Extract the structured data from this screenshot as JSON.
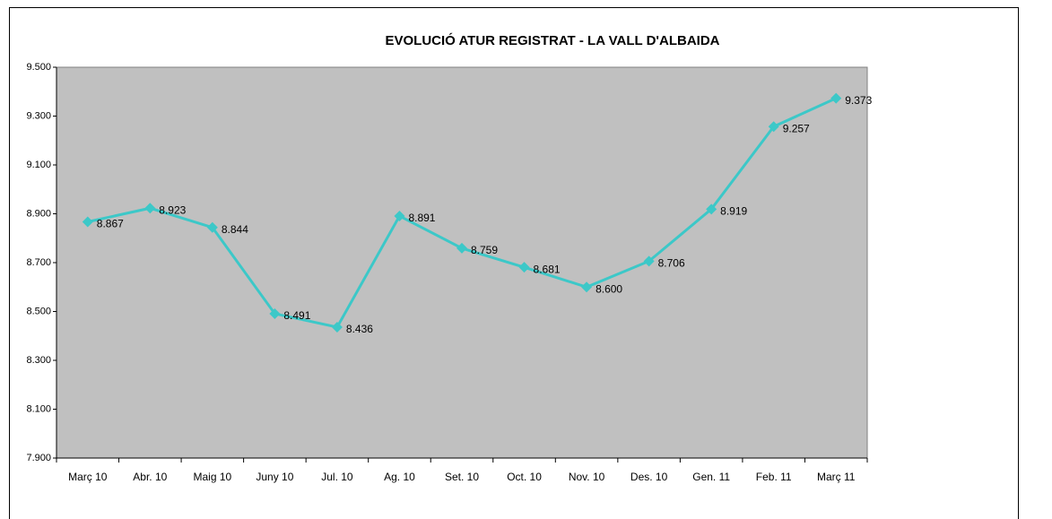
{
  "chart_data": {
    "type": "line",
    "title": "EVOLUCIÓ ATUR REGISTRAT - LA VALL D'ALBAIDA",
    "categories": [
      "Març 10",
      "Abr. 10",
      "Maig 10",
      "Juny 10",
      "Jul. 10",
      "Ag. 10",
      "Set. 10",
      "Oct. 10",
      "Nov. 10",
      "Des. 10",
      "Gen. 11",
      "Feb. 11",
      "Març 11"
    ],
    "series": [
      {
        "color": "#3cc8c8",
        "values": [
          8867,
          8923,
          8844,
          8491,
          8436,
          8891,
          8759,
          8681,
          8600,
          8706,
          8919,
          9257,
          9373
        ],
        "value_labels": [
          "8.867",
          "8.923",
          "8.844",
          "8.491",
          "8.436",
          "8.891",
          "8.759",
          "8.681",
          "8.600",
          "8.706",
          "8.919",
          "9.257",
          "9.373"
        ]
      }
    ],
    "ylim": [
      7900,
      9500
    ],
    "yticks": [
      {
        "value": 7900,
        "label": "7.900"
      },
      {
        "value": 8100,
        "label": "8.100"
      },
      {
        "value": 8300,
        "label": "8.300"
      },
      {
        "value": 8500,
        "label": "8.500"
      },
      {
        "value": 8700,
        "label": "8.700"
      },
      {
        "value": 8900,
        "label": "8.900"
      },
      {
        "value": 9100,
        "label": "9.100"
      },
      {
        "value": 9300,
        "label": "9.300"
      },
      {
        "value": 9500,
        "label": "9.500"
      }
    ],
    "plot_background": "#c0c0c0"
  }
}
